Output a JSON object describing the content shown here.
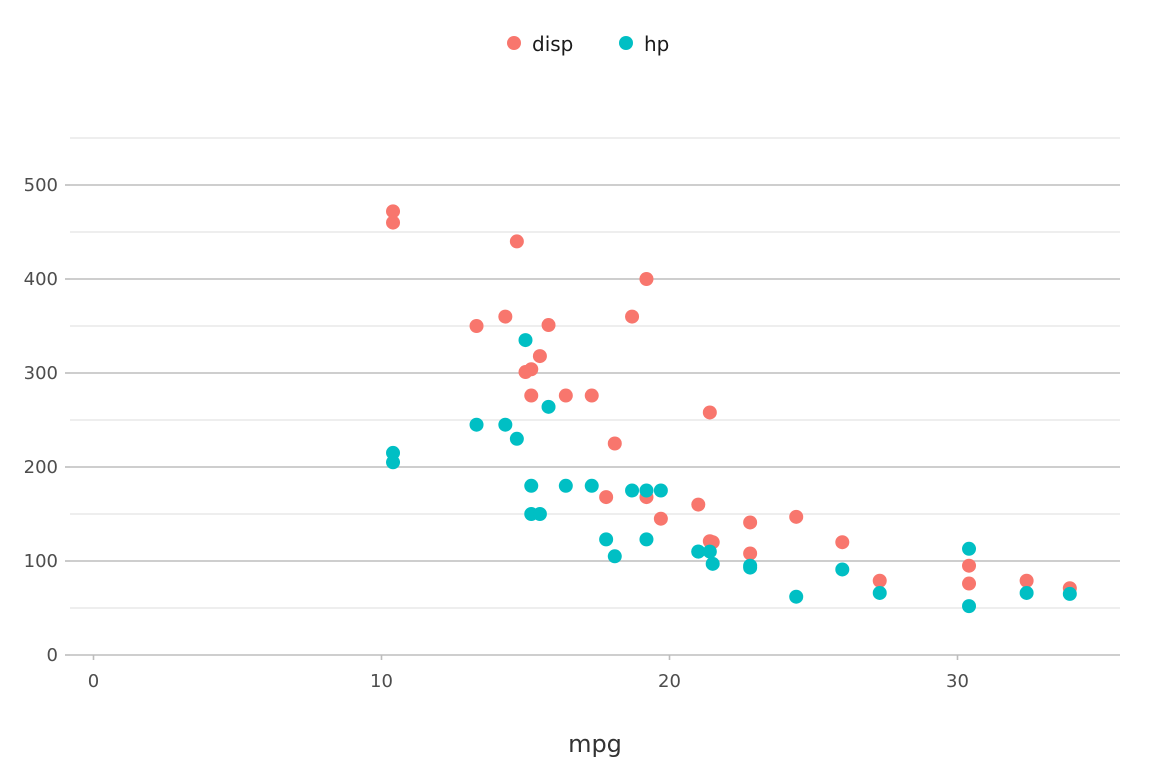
{
  "chart_data": {
    "type": "scatter",
    "title": "",
    "xlabel": "mpg",
    "ylabel": "",
    "xlim": [
      0,
      35
    ],
    "ylim": [
      0,
      550
    ],
    "x_ticks": [
      0,
      10,
      20,
      30
    ],
    "y_ticks": [
      0,
      100,
      200,
      300,
      400,
      500
    ],
    "grid": true,
    "legend_position": "top",
    "series": [
      {
        "name": "disp",
        "color": "#F8766D",
        "x": [
          10.4,
          10.4,
          14.7,
          19.2,
          13.3,
          14.3,
          15.8,
          18.7,
          15.5,
          15.0,
          15.2,
          15.2,
          16.4,
          17.3,
          21.4,
          18.1,
          17.8,
          19.2,
          21.0,
          19.7,
          21.4,
          21.5,
          22.8,
          24.4,
          22.8,
          26.0,
          27.3,
          30.4,
          30.4,
          32.4,
          33.9
        ],
        "y": [
          472,
          460,
          440,
          400,
          350,
          360,
          351,
          360,
          318,
          301,
          304,
          276,
          276,
          276,
          258,
          225,
          168,
          168,
          160,
          145,
          121,
          120,
          141,
          147,
          108,
          120,
          79,
          95,
          76,
          79,
          71
        ]
      },
      {
        "name": "hp",
        "color": "#00BFC4",
        "x": [
          10.4,
          10.4,
          13.3,
          14.3,
          14.7,
          15.0,
          15.8,
          15.2,
          15.2,
          15.5,
          16.4,
          17.3,
          18.7,
          19.2,
          19.7,
          17.8,
          19.2,
          18.1,
          21.0,
          21.0,
          21.4,
          21.5,
          22.8,
          22.8,
          24.4,
          26.0,
          27.3,
          30.4,
          30.4,
          32.4,
          33.9
        ],
        "y": [
          215,
          205,
          245,
          245,
          230,
          335,
          264,
          180,
          150,
          150,
          180,
          180,
          175,
          175,
          175,
          123,
          123,
          105,
          110,
          110,
          110,
          97,
          95,
          93,
          62,
          91,
          66,
          113,
          52,
          66,
          65
        ]
      }
    ]
  }
}
